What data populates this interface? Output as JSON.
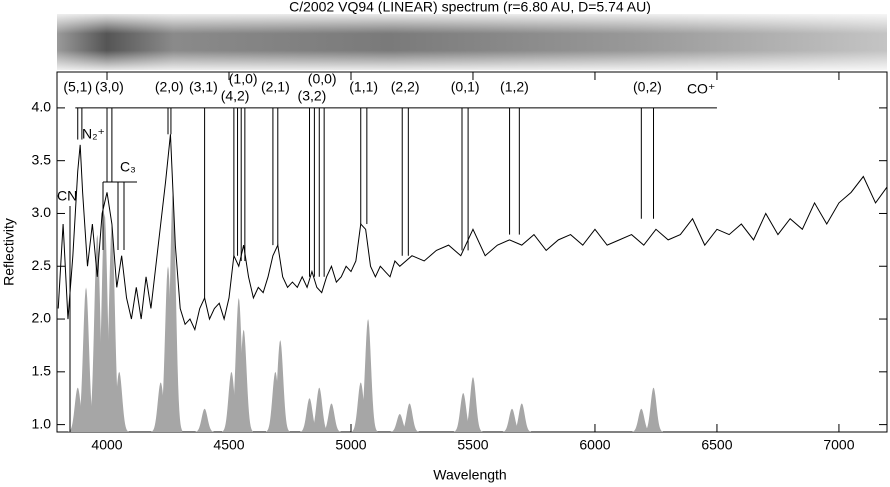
{
  "chart_data": {
    "type": "line",
    "title": "C/2002 VQ94 (LINEAR) spectrum (r=6.80 AU, D=5.74 AU)",
    "x_label": "Wavelength",
    "y_label": "Reflectivity",
    "xlim": [
      3795,
      7197
    ],
    "ylim": [
      0.93,
      4.34
    ],
    "xticks": [
      4000,
      4500,
      5000,
      5500,
      6000,
      6500,
      7000
    ],
    "yticks": [
      {
        "value": 1,
        "label": "1.0"
      },
      1.5,
      {
        "value": 2,
        "label": "2.0"
      },
      2.5,
      {
        "value": 3,
        "label": "3.0"
      },
      3.5,
      {
        "value": 4,
        "label": "4.0"
      }
    ],
    "x": [
      3800,
      3820,
      3840,
      3860,
      3880,
      3890,
      3900,
      3920,
      3940,
      3960,
      3980,
      4000,
      4020,
      4040,
      4060,
      4080,
      4100,
      4120,
      4140,
      4160,
      4180,
      4200,
      4220,
      4240,
      4260,
      4280,
      4300,
      4320,
      4340,
      4360,
      4380,
      4400,
      4420,
      4440,
      4460,
      4480,
      4500,
      4520,
      4540,
      4560,
      4580,
      4600,
      4620,
      4640,
      4660,
      4680,
      4700,
      4720,
      4740,
      4760,
      4780,
      4800,
      4820,
      4840,
      4860,
      4880,
      4900,
      4920,
      4940,
      4960,
      4980,
      5000,
      5020,
      5040,
      5060,
      5080,
      5100,
      5120,
      5140,
      5160,
      5180,
      5200,
      5250,
      5300,
      5350,
      5400,
      5450,
      5500,
      5550,
      5600,
      5650,
      5700,
      5750,
      5800,
      5850,
      5900,
      5950,
      6000,
      6050,
      6100,
      6150,
      6200,
      6250,
      6300,
      6350,
      6400,
      6450,
      6500,
      6550,
      6600,
      6650,
      6700,
      6750,
      6800,
      6850,
      6900,
      6950,
      7000,
      7050,
      7100,
      7150,
      7197
    ],
    "series": [
      {
        "color": "#000000",
        "values": [
          2.1,
          2.9,
          2.0,
          2.6,
          3.4,
          3.65,
          3.2,
          2.5,
          2.9,
          2.4,
          3.0,
          3.2,
          2.9,
          2.3,
          2.6,
          2.2,
          2.0,
          2.3,
          2.0,
          2.4,
          2.1,
          2.5,
          2.9,
          3.3,
          3.75,
          2.7,
          2.1,
          1.95,
          2.0,
          1.9,
          2.1,
          2.2,
          2.0,
          2.1,
          2.15,
          2.0,
          2.2,
          2.6,
          2.5,
          2.7,
          2.4,
          2.2,
          2.3,
          2.25,
          2.4,
          2.6,
          2.7,
          2.4,
          2.3,
          2.35,
          2.3,
          2.4,
          2.3,
          2.45,
          2.3,
          2.25,
          2.4,
          2.5,
          2.35,
          2.4,
          2.5,
          2.45,
          2.55,
          2.9,
          2.85,
          2.5,
          2.4,
          2.5,
          2.45,
          2.4,
          2.55,
          2.5,
          2.6,
          2.55,
          2.65,
          2.7,
          2.6,
          2.85,
          2.6,
          2.7,
          2.75,
          2.7,
          2.8,
          2.65,
          2.75,
          2.8,
          2.7,
          2.85,
          2.7,
          2.75,
          2.8,
          2.7,
          2.85,
          2.75,
          2.8,
          2.95,
          2.7,
          2.85,
          2.8,
          2.9,
          2.75,
          3.0,
          2.8,
          2.95,
          2.85,
          3.1,
          2.9,
          3.1,
          3.2,
          3.35,
          3.1,
          3.25
        ]
      }
    ],
    "emission": {
      "color": "#a6a6a6",
      "x": [
        3880,
        3914,
        3960,
        3990,
        4020,
        4050,
        4220,
        4250,
        4270,
        4400,
        4510,
        4540,
        4560,
        4690,
        4710,
        4830,
        4870,
        4920,
        5040,
        5070,
        5200,
        5240,
        5460,
        5500,
        5660,
        5700,
        6190,
        6240
      ],
      "values": [
        1.35,
        2.3,
        2.8,
        3.0,
        2.9,
        1.5,
        1.4,
        2.5,
        3.2,
        1.15,
        1.5,
        2.2,
        1.9,
        1.5,
        1.8,
        1.25,
        1.35,
        1.2,
        1.4,
        2.0,
        1.1,
        1.2,
        1.3,
        1.45,
        1.15,
        1.2,
        1.15,
        1.35
      ]
    },
    "band_name": "CO⁺",
    "band_level": 4.0,
    "band_range": [
      3870,
      6500
    ],
    "bands": [
      {
        "label": "(5,1)",
        "x": 3880,
        "lines": [
          3880,
          3897
        ],
        "bottom": 3.7
      },
      {
        "label": "(3,0)",
        "x": 4010,
        "lines": [
          4000,
          4020
        ],
        "bottom": 3.3
      },
      {
        "label": "(2,0)",
        "x": 4255,
        "lines": [
          4250,
          4262
        ],
        "bottom": 3.75
      },
      {
        "label": "(3,1)",
        "x": 4395,
        "lines": [
          4400
        ],
        "bottom": 2.2
      },
      {
        "label": "(4,2)",
        "x": 4525,
        "lines": [
          4520,
          4535
        ],
        "bottom": 2.6
      },
      {
        "label": "(1,0)",
        "x": 4558,
        "lines": [
          4550,
          4565
        ],
        "bottom": 2.55
      },
      {
        "label": "(2,1)",
        "x": 4690,
        "lines": [
          4680,
          4700
        ],
        "bottom": 2.7
      },
      {
        "label": "(3,2)",
        "x": 4840,
        "lines": [
          4830,
          4850
        ],
        "bottom": 2.4
      },
      {
        "label": "(0,0)",
        "x": 4882,
        "lines": [
          4870,
          4890
        ],
        "bottom": 2.4
      },
      {
        "label": "(1,1)",
        "x": 5052,
        "lines": [
          5040,
          5065
        ],
        "bottom": 2.9
      },
      {
        "label": "(2,2)",
        "x": 5222,
        "lines": [
          5210,
          5235
        ],
        "bottom": 2.6
      },
      {
        "label": "(0,1)",
        "x": 5468,
        "lines": [
          5455,
          5480
        ],
        "bottom": 2.65
      },
      {
        "label": "(1,2)",
        "x": 5670,
        "lines": [
          5650,
          5690
        ],
        "bottom": 2.8
      },
      {
        "label": "(0,2)",
        "x": 6215,
        "lines": [
          6190,
          6240
        ],
        "bottom": 2.95
      }
    ],
    "species": [
      "CN",
      "N₂⁺",
      "C₃"
    ]
  }
}
